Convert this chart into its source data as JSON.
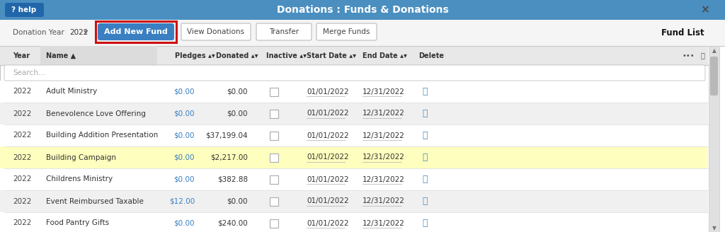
{
  "title": "Donations : Funds & Donations",
  "header_bg": "#4a8fc0",
  "header_text_color": "#ffffff",
  "white": "#ffffff",
  "light_gray": "#f2f2f2",
  "border_color": "#c8c8c8",
  "toolbar_bg": "#f5f5f5",
  "add_btn_bg": "#3a7fc1",
  "add_btn_text": "#ffffff",
  "other_btn_bg": "#ffffff",
  "other_btn_border": "#bbbbbb",
  "fund_list_label": "Fund List",
  "col_header_bg": "#e8e8e8",
  "name_col_bg": "#dcdcdc",
  "search_placeholder": "Search...",
  "search_text_color": "#aaaaaa",
  "rows": [
    {
      "year": "2022",
      "name": "Adult Ministry",
      "pledges": "$0.00",
      "donated": "$0.00",
      "start": "01/01/2022",
      "end": "12/31/2022",
      "highlight": false
    },
    {
      "year": "2022",
      "name": "Benevolence Love Offering",
      "pledges": "$0.00",
      "donated": "$0.00",
      "start": "01/01/2022",
      "end": "12/31/2022",
      "highlight": false
    },
    {
      "year": "2022",
      "name": "Building Addition Presentation",
      "pledges": "$0.00",
      "donated": "$37,199.04",
      "start": "01/01/2022",
      "end": "12/31/2022",
      "highlight": false
    },
    {
      "year": "2022",
      "name": "Building Campaign",
      "pledges": "$0.00",
      "donated": "$2,217.00",
      "start": "01/01/2022",
      "end": "12/31/2022",
      "highlight": true
    },
    {
      "year": "2022",
      "name": "Childrens Ministry",
      "pledges": "$0.00",
      "donated": "$382.88",
      "start": "01/01/2022",
      "end": "12/31/2022",
      "highlight": false
    },
    {
      "year": "2022",
      "name": "Event Reimbursed Taxable",
      "pledges": "$12.00",
      "donated": "$0.00",
      "start": "01/01/2022",
      "end": "12/31/2022",
      "highlight": false
    },
    {
      "year": "2022",
      "name": "Food Pantry Gifts",
      "pledges": "$0.00",
      "donated": "$240.00",
      "start": "01/01/2022",
      "end": "12/31/2022",
      "highlight": false
    }
  ],
  "highlight_color": "#fefebe",
  "row_alt_bg": "#f0f0f0",
  "pledges_color": "#3a7fc1",
  "delete_icon_color": "#4a8fc0",
  "scrollbar_bg": "#e0e0e0",
  "scrollbar_thumb": "#b8b8b8",
  "red_border_color": "#cc1111",
  "sep_color": "#e0e0e0"
}
